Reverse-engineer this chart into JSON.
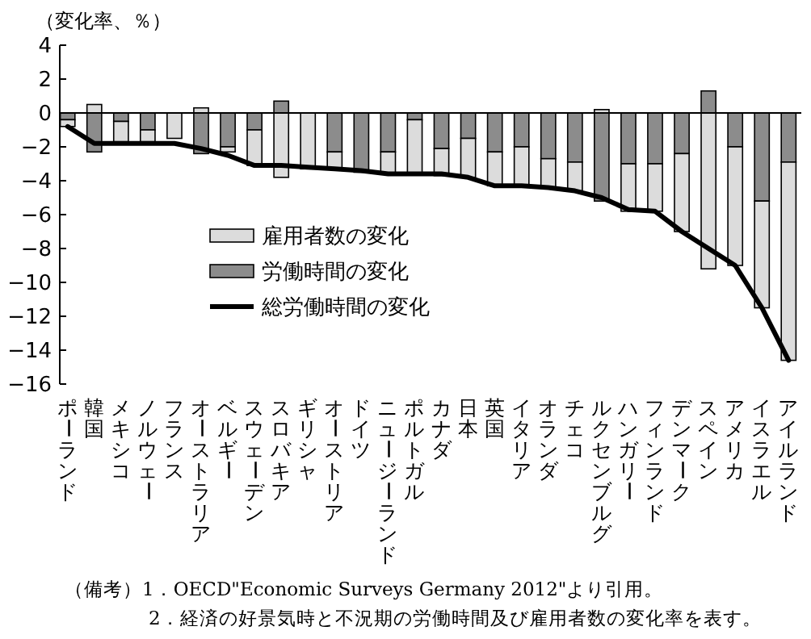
{
  "chart_data": {
    "type": "bar",
    "stacked": true,
    "ylabel": "（変化率、％）",
    "categories": [
      "ポーランド",
      "韓国",
      "メキシコ",
      "ノルウェー",
      "フランス",
      "オーストラリア",
      "ベルギー",
      "スウェーデン",
      "スロバキア",
      "ギリシャ",
      "オーストリア",
      "ドイツ",
      "ニュージーランド",
      "ポルトガル",
      "カナダ",
      "日本",
      "英国",
      "イタリア",
      "オランダ",
      "チェコ",
      "ルクセンブルグ",
      "ハンガリー",
      "フィンランド",
      "デンマーク",
      "スペイン",
      "アメリカ",
      "イスラエル",
      "アイルランド"
    ],
    "series": [
      {
        "name": "労働時間の変化",
        "color": "#8c8c8c",
        "values": [
          -0.4,
          -2.3,
          -0.5,
          -1.0,
          null,
          -2.4,
          -2.0,
          -1.0,
          0.7,
          null,
          -2.3,
          -3.5,
          -2.3,
          -0.4,
          -2.1,
          -1.5,
          -2.3,
          -2.0,
          -2.7,
          -2.9,
          -5.2,
          -3.0,
          -3.0,
          -2.4,
          1.3,
          -2.0,
          -5.2,
          -2.9
        ]
      },
      {
        "name": "雇用者数の変化",
        "color": "#dcdcdc",
        "values": [
          -0.4,
          0.5,
          -1.2,
          -0.7,
          -1.5,
          0.3,
          -0.3,
          -2.1,
          -3.8,
          -3.3,
          -1.0,
          null,
          -1.3,
          -3.2,
          -1.6,
          -2.3,
          -2.0,
          -2.3,
          -1.7,
          -1.7,
          0.2,
          -2.8,
          -2.8,
          -4.6,
          -9.2,
          -7.0,
          -6.3,
          -11.7
        ]
      },
      {
        "name": "総労働時間の変化",
        "type": "line",
        "color": "#000000",
        "values": [
          -0.8,
          -1.8,
          -1.8,
          -1.8,
          -1.8,
          -2.1,
          -2.5,
          -3.1,
          -3.1,
          -3.2,
          -3.3,
          -3.4,
          -3.6,
          -3.6,
          -3.6,
          -3.8,
          -4.3,
          -4.3,
          -4.4,
          -4.6,
          -5.0,
          -5.7,
          -5.8,
          -7.0,
          -8.0,
          -9.0,
          -11.5,
          -14.6
        ]
      }
    ],
    "ylim": [
      -16,
      4
    ],
    "yticks": [
      -16,
      -14,
      -12,
      -10,
      -8,
      -6,
      -4,
      -2,
      0,
      2,
      4
    ],
    "legend": "center",
    "marker": "none",
    "line_style": "solid",
    "annotations": [
      "（備考）1．OECD\"Economic Surveys Germany 2012\"より引用。",
      "2．経済の好景気時と不況期の労働時間及び雇用者数の変化率を表す。"
    ]
  }
}
